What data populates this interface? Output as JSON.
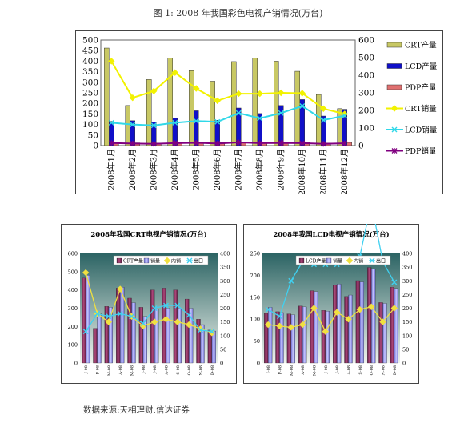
{
  "figure": {
    "caption": "图 1:  2008 年我国彩色电视产销情况(万台)",
    "source": "数据来源:天相理财,信达证券"
  },
  "colors": {
    "crt_bar": "#c8c864",
    "lcd_bar": "#1010c8",
    "pdp_bar": "#e07070",
    "crt_sales": "#f2f200",
    "lcd_sales": "#30d8e8",
    "pdp_sales": "#800080",
    "small_prod": "#8b2a5c",
    "small_sales": "#9a9ae8",
    "small_domestic": "#f0e040",
    "small_export": "#40d0f0"
  },
  "chart_data": [
    {
      "type": "bar",
      "categories": [
        "2008年1月",
        "2008年2月",
        "2008年3月",
        "2008年4月",
        "2008年5月",
        "2008年6月",
        "2008年7月",
        "2008年8月",
        "2008年9月",
        "2008年10月",
        "2008年11月",
        "2008年12月"
      ],
      "y_left_ticks": [
        "500",
        "450",
        "400",
        "350",
        "300",
        "250",
        "200",
        "150",
        "100",
        "50",
        "0"
      ],
      "y_right_ticks": [
        "600",
        "500",
        "400",
        "300",
        "200",
        "100",
        "0"
      ],
      "ylim_left": [
        0,
        500
      ],
      "ylim_right": [
        0,
        600
      ],
      "series": [
        {
          "name": "CRT产量",
          "kind": "bar",
          "axis": "left",
          "values": [
            462,
            190,
            313,
            415,
            355,
            305,
            398,
            415,
            400,
            352,
            242,
            175
          ]
        },
        {
          "name": "LCD产量",
          "kind": "bar",
          "axis": "left",
          "values": [
            115,
            118,
            112,
            130,
            165,
            120,
            178,
            152,
            190,
            218,
            140,
            172
          ]
        },
        {
          "name": "PDP产量",
          "kind": "bar",
          "axis": "left",
          "values": [
            16,
            13,
            12,
            15,
            17,
            14,
            18,
            16,
            17,
            15,
            12,
            15
          ]
        },
        {
          "name": "CRT销量",
          "kind": "line",
          "axis": "right",
          "values": [
            480,
            272,
            310,
            415,
            325,
            255,
            295,
            295,
            300,
            298,
            210,
            180
          ]
        },
        {
          "name": "LCD销量",
          "kind": "line",
          "axis": "right",
          "values": [
            130,
            120,
            115,
            130,
            140,
            135,
            185,
            155,
            185,
            225,
            145,
            170
          ]
        },
        {
          "name": "PDP销量",
          "kind": "line",
          "axis": "right",
          "values": [
            15,
            12,
            10,
            14,
            16,
            12,
            18,
            14,
            15,
            14,
            10,
            13
          ]
        }
      ],
      "legend": "right"
    },
    {
      "type": "bar",
      "title": "2008年我国CRT电视产销情况(万台)",
      "categories": [
        "J-08",
        "F-08",
        "M-08",
        "A-08",
        "M-08",
        "J-08",
        "J-08",
        "A-08",
        "S-08",
        "O-08",
        "N-08",
        "D-08"
      ],
      "y_left_ticks": [
        "600",
        "500",
        "400",
        "300",
        "200",
        "100",
        "0"
      ],
      "y_right_ticks": [
        "400",
        "350",
        "300",
        "250",
        "200",
        "150",
        "100",
        "50",
        "0"
      ],
      "ylim_left": [
        0,
        600
      ],
      "ylim_right": [
        0,
        400
      ],
      "series": [
        {
          "name": "CRT产量",
          "kind": "bar",
          "axis": "left",
          "values": [
            465,
            190,
            310,
            410,
            355,
            305,
            400,
            410,
            400,
            350,
            240,
            180
          ]
        },
        {
          "name": "销量",
          "kind": "bar",
          "axis": "left",
          "values": [
            480,
            270,
            305,
            415,
            330,
            255,
            295,
            300,
            300,
            300,
            210,
            175
          ]
        },
        {
          "name": "内销",
          "kind": "line",
          "axis": "right",
          "values": [
            330,
            180,
            150,
            270,
            170,
            135,
            150,
            160,
            150,
            140,
            125,
            110
          ]
        },
        {
          "name": "出口",
          "kind": "line",
          "axis": "right",
          "values": [
            115,
            180,
            170,
            180,
            170,
            145,
            200,
            210,
            210,
            175,
            120,
            115
          ]
        }
      ],
      "legend": "top"
    },
    {
      "type": "bar",
      "title": "2008年我国LCD电视产销情况(万台)",
      "categories": [
        "J-08",
        "F-08",
        "M-08",
        "A-08",
        "M-08",
        "J-08",
        "J-08",
        "A-08",
        "S-08",
        "O-08",
        "N-08",
        "D-08"
      ],
      "y_left_ticks": [
        "250",
        "200",
        "150",
        "100",
        "50",
        "0"
      ],
      "y_right_ticks": [
        "400",
        "350",
        "300",
        "250",
        "200",
        "150",
        "100",
        "50",
        "0"
      ],
      "ylim_left": [
        0,
        250
      ],
      "ylim_right": [
        0,
        400
      ],
      "series": [
        {
          "name": "LCD产量",
          "kind": "bar",
          "axis": "left",
          "values": [
            113,
            117,
            112,
            130,
            165,
            120,
            178,
            152,
            188,
            218,
            138,
            173
          ]
        },
        {
          "name": "销量",
          "kind": "bar",
          "axis": "left",
          "values": [
            127,
            115,
            110,
            128,
            163,
            118,
            180,
            155,
            185,
            215,
            136,
            170
          ]
        },
        {
          "name": "内销",
          "kind": "line",
          "axis": "right",
          "values": [
            140,
            135,
            130,
            140,
            200,
            115,
            185,
            160,
            195,
            205,
            150,
            200
          ]
        },
        {
          "name": "出口",
          "kind": "line",
          "axis": "right",
          "values": [
            195,
            170,
            300,
            370,
            360,
            360,
            360,
            370,
            390,
            585,
            370,
            295
          ]
        }
      ],
      "legend": "top"
    }
  ]
}
